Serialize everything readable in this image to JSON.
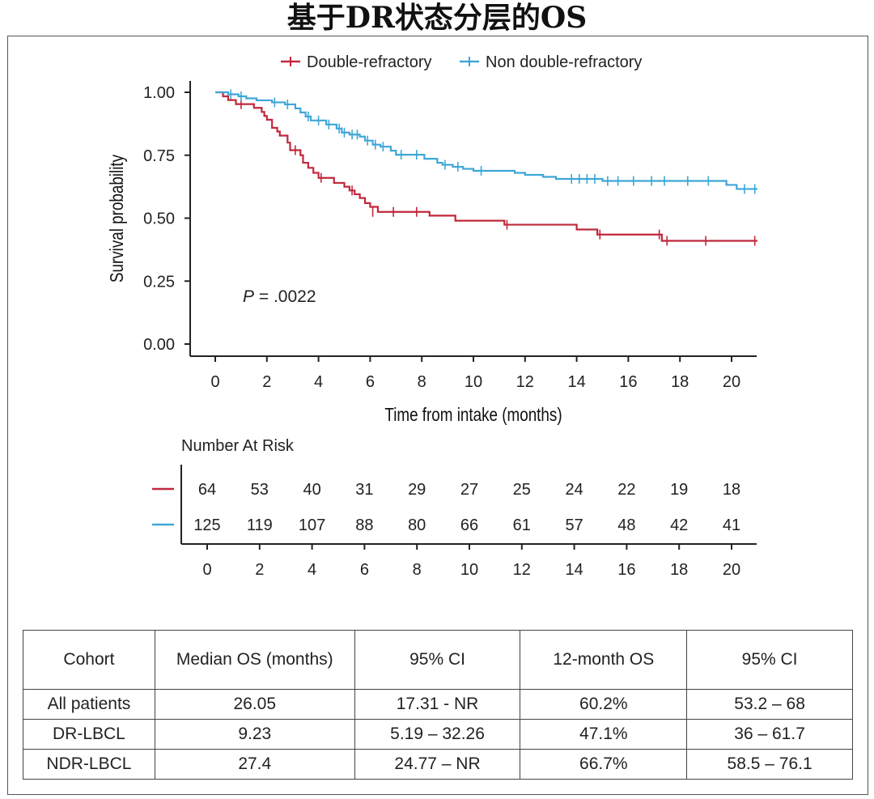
{
  "page_title": "基于DR状态分层的OS",
  "colors": {
    "dr": "#c0283c",
    "ndr": "#3ea7d6",
    "axis": "#222222"
  },
  "chart_data": {
    "type": "line",
    "subtype": "kaplan-meier",
    "xlabel": "Time from intake (months)",
    "ylabel": "Survival probability",
    "xlim": [
      0,
      21
    ],
    "ylim": [
      0,
      1
    ],
    "xticks": [
      0,
      2,
      4,
      6,
      8,
      10,
      12,
      14,
      16,
      18,
      20
    ],
    "yticks": [
      "0.00",
      "0.25",
      "0.50",
      "0.75",
      "1.00"
    ],
    "legend": [
      "Double-refractory",
      "Non double-refractory"
    ],
    "annotation": {
      "p_prefix": "P",
      "p_value": " = .0022"
    },
    "series": [
      {
        "name": "Double-refractory",
        "color": "#c0283c",
        "steps": [
          [
            0,
            1.0
          ],
          [
            0.3,
            0.984
          ],
          [
            0.5,
            0.969
          ],
          [
            0.8,
            0.953
          ],
          [
            1.5,
            0.938
          ],
          [
            1.8,
            0.922
          ],
          [
            1.9,
            0.906
          ],
          [
            2.0,
            0.891
          ],
          [
            2.2,
            0.859
          ],
          [
            2.4,
            0.844
          ],
          [
            2.5,
            0.828
          ],
          [
            2.8,
            0.8
          ],
          [
            2.9,
            0.77
          ],
          [
            3.3,
            0.75
          ],
          [
            3.4,
            0.72
          ],
          [
            3.6,
            0.7
          ],
          [
            3.8,
            0.68
          ],
          [
            4.0,
            0.66
          ],
          [
            4.6,
            0.64
          ],
          [
            5.0,
            0.625
          ],
          [
            5.2,
            0.61
          ],
          [
            5.4,
            0.595
          ],
          [
            5.6,
            0.58
          ],
          [
            5.8,
            0.56
          ],
          [
            6.0,
            0.545
          ],
          [
            6.3,
            0.525
          ],
          [
            8.3,
            0.51
          ],
          [
            9.3,
            0.49
          ],
          [
            11.2,
            0.474
          ],
          [
            14.0,
            0.455
          ],
          [
            14.8,
            0.435
          ],
          [
            17.3,
            0.41
          ],
          [
            21,
            0.41
          ]
        ],
        "censors": [
          [
            1.0,
            0.953
          ],
          [
            3.1,
            0.77
          ],
          [
            4.1,
            0.66
          ],
          [
            5.3,
            0.61
          ],
          [
            6.1,
            0.525
          ],
          [
            6.9,
            0.525
          ],
          [
            7.8,
            0.525
          ],
          [
            11.3,
            0.474
          ],
          [
            14.9,
            0.435
          ],
          [
            17.2,
            0.435
          ],
          [
            17.5,
            0.41
          ],
          [
            19.0,
            0.41
          ],
          [
            20.9,
            0.41
          ]
        ]
      },
      {
        "name": "Non double-refractory",
        "color": "#3ea7d6",
        "steps": [
          [
            0,
            1.0
          ],
          [
            0.5,
            0.992
          ],
          [
            0.9,
            0.984
          ],
          [
            1.2,
            0.976
          ],
          [
            1.6,
            0.968
          ],
          [
            2.2,
            0.96
          ],
          [
            2.7,
            0.952
          ],
          [
            3.1,
            0.936
          ],
          [
            3.3,
            0.92
          ],
          [
            3.5,
            0.904
          ],
          [
            3.7,
            0.888
          ],
          [
            4.3,
            0.872
          ],
          [
            4.7,
            0.856
          ],
          [
            4.9,
            0.84
          ],
          [
            5.2,
            0.832
          ],
          [
            5.6,
            0.824
          ],
          [
            5.8,
            0.808
          ],
          [
            6.1,
            0.792
          ],
          [
            6.4,
            0.784
          ],
          [
            6.8,
            0.768
          ],
          [
            7.0,
            0.752
          ],
          [
            8.1,
            0.736
          ],
          [
            8.6,
            0.72
          ],
          [
            8.8,
            0.712
          ],
          [
            9.2,
            0.704
          ],
          [
            9.6,
            0.696
          ],
          [
            10.0,
            0.688
          ],
          [
            11.6,
            0.68
          ],
          [
            12.0,
            0.672
          ],
          [
            12.7,
            0.664
          ],
          [
            13.2,
            0.656
          ],
          [
            15.0,
            0.648
          ],
          [
            19.8,
            0.632
          ],
          [
            20.2,
            0.616
          ],
          [
            21,
            0.616
          ]
        ],
        "censors": [
          [
            0.6,
            0.992
          ],
          [
            1.0,
            0.984
          ],
          [
            2.3,
            0.96
          ],
          [
            2.8,
            0.952
          ],
          [
            3.6,
            0.904
          ],
          [
            4.0,
            0.888
          ],
          [
            4.4,
            0.872
          ],
          [
            4.8,
            0.856
          ],
          [
            5.0,
            0.84
          ],
          [
            5.3,
            0.832
          ],
          [
            5.5,
            0.832
          ],
          [
            5.9,
            0.808
          ],
          [
            6.2,
            0.792
          ],
          [
            6.5,
            0.784
          ],
          [
            7.2,
            0.752
          ],
          [
            7.8,
            0.752
          ],
          [
            8.9,
            0.712
          ],
          [
            9.4,
            0.704
          ],
          [
            10.3,
            0.688
          ],
          [
            13.8,
            0.656
          ],
          [
            14.1,
            0.656
          ],
          [
            14.4,
            0.656
          ],
          [
            14.7,
            0.656
          ],
          [
            15.2,
            0.648
          ],
          [
            15.6,
            0.648
          ],
          [
            16.2,
            0.648
          ],
          [
            16.9,
            0.648
          ],
          [
            17.4,
            0.648
          ],
          [
            18.3,
            0.648
          ],
          [
            19.1,
            0.648
          ],
          [
            20.5,
            0.616
          ],
          [
            20.9,
            0.616
          ]
        ]
      }
    ],
    "risk_table": {
      "title": "Number At Risk",
      "times": [
        0,
        2,
        4,
        6,
        8,
        10,
        12,
        14,
        16,
        18,
        20
      ],
      "rows": [
        {
          "color": "#c0283c",
          "values": [
            64,
            53,
            40,
            31,
            29,
            27,
            25,
            24,
            22,
            19,
            18
          ]
        },
        {
          "color": "#3ea7d6",
          "values": [
            125,
            119,
            107,
            88,
            80,
            66,
            61,
            57,
            48,
            42,
            41
          ]
        }
      ]
    }
  },
  "summary_table": {
    "headers": [
      "Cohort",
      "Median OS (months)",
      "95% CI",
      "12-month OS",
      "95% CI"
    ],
    "rows": [
      [
        "All patients",
        "26.05",
        "17.31 - NR",
        "60.2%",
        "53.2 – 68"
      ],
      [
        "DR-LBCL",
        "9.23",
        "5.19 – 32.26",
        "47.1%",
        "36 – 61.7"
      ],
      [
        "NDR-LBCL",
        "27.4",
        "24.77 – NR",
        "66.7%",
        "58.5 – 76.1"
      ]
    ]
  }
}
